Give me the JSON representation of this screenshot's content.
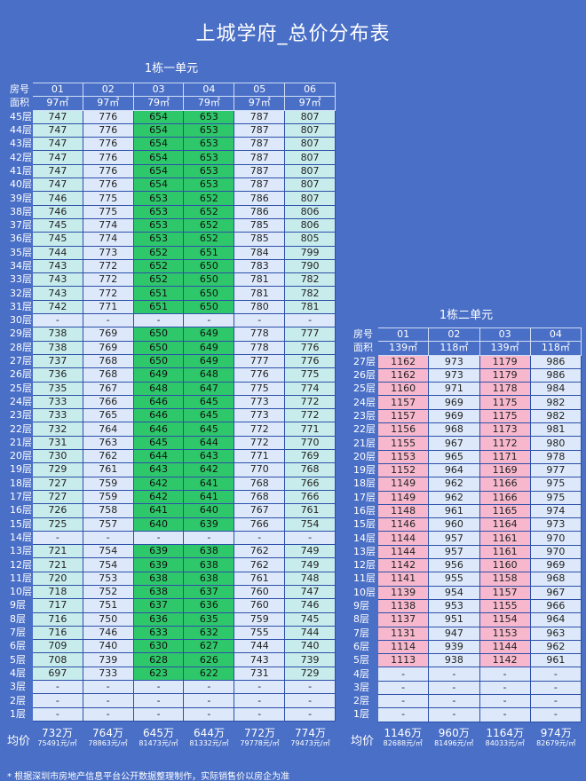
{
  "title": "上城学府_总价分布表",
  "building1": {
    "subtitle": "1栋一单元",
    "header_label": "房号",
    "area_label": "面积",
    "units": [
      "01",
      "02",
      "03",
      "04",
      "05",
      "06"
    ],
    "areas": [
      "97㎡",
      "97㎡",
      "79㎡",
      "79㎡",
      "97㎡",
      "97㎡"
    ],
    "col_colors": [
      "#c8ecec",
      "#dde9fb",
      "#2ec86a",
      "#2ec86a",
      "#dde9fb",
      "#c8ecec"
    ],
    "rows": [
      {
        "floor": "45层",
        "v": [
          "747",
          "776",
          "654",
          "653",
          "787",
          "807"
        ]
      },
      {
        "floor": "44层",
        "v": [
          "747",
          "776",
          "654",
          "653",
          "787",
          "807"
        ]
      },
      {
        "floor": "43层",
        "v": [
          "747",
          "776",
          "654",
          "653",
          "787",
          "807"
        ]
      },
      {
        "floor": "42层",
        "v": [
          "747",
          "776",
          "654",
          "653",
          "787",
          "807"
        ]
      },
      {
        "floor": "41层",
        "v": [
          "747",
          "776",
          "654",
          "653",
          "787",
          "807"
        ]
      },
      {
        "floor": "40层",
        "v": [
          "747",
          "776",
          "654",
          "653",
          "787",
          "807"
        ]
      },
      {
        "floor": "39层",
        "v": [
          "746",
          "775",
          "653",
          "652",
          "786",
          "807"
        ]
      },
      {
        "floor": "38层",
        "v": [
          "746",
          "775",
          "653",
          "652",
          "786",
          "806"
        ]
      },
      {
        "floor": "37层",
        "v": [
          "745",
          "774",
          "653",
          "652",
          "785",
          "806"
        ]
      },
      {
        "floor": "36层",
        "v": [
          "745",
          "774",
          "653",
          "652",
          "785",
          "805"
        ]
      },
      {
        "floor": "35层",
        "v": [
          "744",
          "773",
          "652",
          "651",
          "784",
          "799"
        ]
      },
      {
        "floor": "34层",
        "v": [
          "743",
          "772",
          "652",
          "650",
          "783",
          "790"
        ]
      },
      {
        "floor": "33层",
        "v": [
          "743",
          "772",
          "652",
          "650",
          "781",
          "782"
        ]
      },
      {
        "floor": "32层",
        "v": [
          "743",
          "772",
          "651",
          "650",
          "781",
          "782"
        ]
      },
      {
        "floor": "31层",
        "v": [
          "742",
          "771",
          "651",
          "650",
          "780",
          "781"
        ]
      },
      {
        "floor": "30层",
        "v": [
          "-",
          "-",
          "-",
          "-",
          "-",
          "-"
        ]
      },
      {
        "floor": "29层",
        "v": [
          "738",
          "769",
          "650",
          "649",
          "778",
          "777"
        ]
      },
      {
        "floor": "28层",
        "v": [
          "738",
          "769",
          "650",
          "649",
          "778",
          "776"
        ]
      },
      {
        "floor": "27层",
        "v": [
          "737",
          "768",
          "650",
          "649",
          "777",
          "776"
        ]
      },
      {
        "floor": "26层",
        "v": [
          "736",
          "768",
          "649",
          "648",
          "776",
          "775"
        ]
      },
      {
        "floor": "25层",
        "v": [
          "735",
          "767",
          "648",
          "647",
          "775",
          "774"
        ]
      },
      {
        "floor": "24层",
        "v": [
          "733",
          "766",
          "646",
          "645",
          "773",
          "772"
        ]
      },
      {
        "floor": "23层",
        "v": [
          "733",
          "765",
          "646",
          "645",
          "773",
          "772"
        ]
      },
      {
        "floor": "22层",
        "v": [
          "732",
          "764",
          "646",
          "645",
          "772",
          "771"
        ]
      },
      {
        "floor": "21层",
        "v": [
          "731",
          "763",
          "645",
          "644",
          "772",
          "770"
        ]
      },
      {
        "floor": "20层",
        "v": [
          "730",
          "762",
          "644",
          "643",
          "771",
          "769"
        ]
      },
      {
        "floor": "19层",
        "v": [
          "729",
          "761",
          "643",
          "642",
          "770",
          "768"
        ]
      },
      {
        "floor": "18层",
        "v": [
          "727",
          "759",
          "642",
          "641",
          "768",
          "766"
        ]
      },
      {
        "floor": "17层",
        "v": [
          "727",
          "759",
          "642",
          "641",
          "768",
          "766"
        ]
      },
      {
        "floor": "16层",
        "v": [
          "726",
          "758",
          "641",
          "640",
          "767",
          "761"
        ]
      },
      {
        "floor": "15层",
        "v": [
          "725",
          "757",
          "640",
          "639",
          "766",
          "754"
        ]
      },
      {
        "floor": "14层",
        "v": [
          "-",
          "-",
          "-",
          "-",
          "-",
          "-"
        ]
      },
      {
        "floor": "13层",
        "v": [
          "721",
          "754",
          "639",
          "638",
          "762",
          "749"
        ]
      },
      {
        "floor": "12层",
        "v": [
          "721",
          "754",
          "639",
          "638",
          "762",
          "749"
        ]
      },
      {
        "floor": "11层",
        "v": [
          "720",
          "753",
          "638",
          "638",
          "761",
          "748"
        ]
      },
      {
        "floor": "10层",
        "v": [
          "718",
          "752",
          "638",
          "637",
          "760",
          "747"
        ]
      },
      {
        "floor": "9层",
        "v": [
          "717",
          "751",
          "637",
          "636",
          "760",
          "746"
        ]
      },
      {
        "floor": "8层",
        "v": [
          "716",
          "750",
          "636",
          "635",
          "759",
          "745"
        ]
      },
      {
        "floor": "7层",
        "v": [
          "716",
          "746",
          "633",
          "632",
          "755",
          "744"
        ]
      },
      {
        "floor": "6层",
        "v": [
          "709",
          "740",
          "630",
          "627",
          "744",
          "740"
        ]
      },
      {
        "floor": "5层",
        "v": [
          "708",
          "739",
          "628",
          "626",
          "743",
          "739"
        ]
      },
      {
        "floor": "4层",
        "v": [
          "697",
          "733",
          "623",
          "622",
          "731",
          "729"
        ]
      },
      {
        "floor": "3层",
        "v": [
          "-",
          "-",
          "-",
          "-",
          "-",
          "-"
        ]
      },
      {
        "floor": "2层",
        "v": [
          "-",
          "-",
          "-",
          "-",
          "-",
          "-"
        ]
      },
      {
        "floor": "1层",
        "v": [
          "-",
          "-",
          "-",
          "-",
          "-",
          "-"
        ]
      }
    ],
    "avg_label": "均价",
    "avg_total": [
      "732万",
      "764万",
      "645万",
      "644万",
      "772万",
      "774万"
    ],
    "avg_unit": [
      "75491元/㎡",
      "78863元/㎡",
      "81473元/㎡",
      "81332元/㎡",
      "79778元/㎡",
      "79473元/㎡"
    ]
  },
  "building2": {
    "subtitle": "1栋二单元",
    "header_label": "房号",
    "area_label": "面积",
    "units": [
      "01",
      "02",
      "03",
      "04"
    ],
    "areas": [
      "139㎡",
      "118㎡",
      "139㎡",
      "118㎡"
    ],
    "col_colors": [
      "#f7b8cd",
      "#dde9fb",
      "#f7b8cd",
      "#dde9fb"
    ],
    "rows": [
      {
        "floor": "27层",
        "v": [
          "1162",
          "973",
          "1179",
          "986"
        ]
      },
      {
        "floor": "26层",
        "v": [
          "1162",
          "973",
          "1179",
          "986"
        ]
      },
      {
        "floor": "25层",
        "v": [
          "1160",
          "971",
          "1178",
          "984"
        ]
      },
      {
        "floor": "24层",
        "v": [
          "1157",
          "969",
          "1175",
          "982"
        ]
      },
      {
        "floor": "23层",
        "v": [
          "1157",
          "969",
          "1175",
          "982"
        ]
      },
      {
        "floor": "22层",
        "v": [
          "1156",
          "968",
          "1173",
          "981"
        ]
      },
      {
        "floor": "21层",
        "v": [
          "1155",
          "967",
          "1172",
          "980"
        ]
      },
      {
        "floor": "20层",
        "v": [
          "1153",
          "965",
          "1171",
          "978"
        ]
      },
      {
        "floor": "19层",
        "v": [
          "1152",
          "964",
          "1169",
          "977"
        ]
      },
      {
        "floor": "18层",
        "v": [
          "1149",
          "962",
          "1166",
          "975"
        ]
      },
      {
        "floor": "17层",
        "v": [
          "1149",
          "962",
          "1166",
          "975"
        ]
      },
      {
        "floor": "16层",
        "v": [
          "1148",
          "961",
          "1165",
          "974"
        ]
      },
      {
        "floor": "15层",
        "v": [
          "1146",
          "960",
          "1164",
          "973"
        ]
      },
      {
        "floor": "14层",
        "v": [
          "1144",
          "957",
          "1161",
          "970"
        ]
      },
      {
        "floor": "13层",
        "v": [
          "1144",
          "957",
          "1161",
          "970"
        ]
      },
      {
        "floor": "12层",
        "v": [
          "1142",
          "956",
          "1160",
          "969"
        ]
      },
      {
        "floor": "11层",
        "v": [
          "1141",
          "955",
          "1158",
          "968"
        ]
      },
      {
        "floor": "10层",
        "v": [
          "1139",
          "954",
          "1157",
          "967"
        ]
      },
      {
        "floor": "9层",
        "v": [
          "1138",
          "953",
          "1155",
          "966"
        ]
      },
      {
        "floor": "8层",
        "v": [
          "1137",
          "951",
          "1154",
          "964"
        ]
      },
      {
        "floor": "7层",
        "v": [
          "1131",
          "947",
          "1153",
          "963"
        ]
      },
      {
        "floor": "6层",
        "v": [
          "1114",
          "939",
          "1144",
          "962"
        ]
      },
      {
        "floor": "5层",
        "v": [
          "1113",
          "938",
          "1142",
          "961"
        ]
      },
      {
        "floor": "4层",
        "v": [
          "-",
          "-",
          "-",
          "-"
        ]
      },
      {
        "floor": "3层",
        "v": [
          "-",
          "-",
          "-",
          "-"
        ]
      },
      {
        "floor": "2层",
        "v": [
          "-",
          "-",
          "-",
          "-"
        ]
      },
      {
        "floor": "1层",
        "v": [
          "-",
          "-",
          "-",
          "-"
        ]
      }
    ],
    "avg_label": "均价",
    "avg_total": [
      "1146万",
      "960万",
      "1164万",
      "974万"
    ],
    "avg_unit": [
      "82688元/㎡",
      "81496元/㎡",
      "84033元/㎡",
      "82679元/㎡"
    ]
  },
  "footnote": "* 根据深圳市房地产信息平台公开数据整理制作，实际销售价以房企为准"
}
